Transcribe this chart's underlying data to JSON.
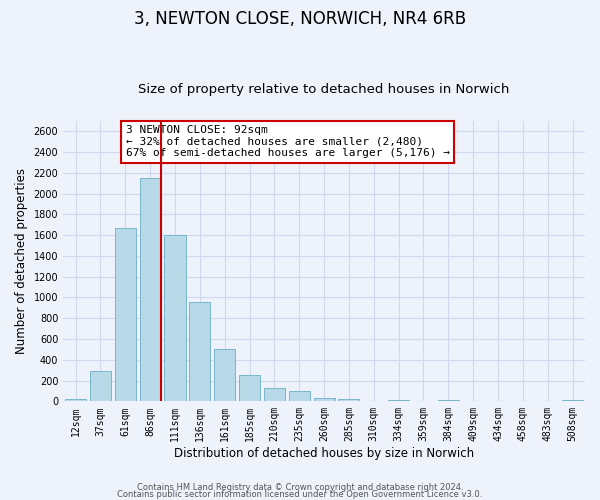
{
  "title": "3, NEWTON CLOSE, NORWICH, NR4 6RB",
  "subtitle": "Size of property relative to detached houses in Norwich",
  "xlabel": "Distribution of detached houses by size in Norwich",
  "ylabel": "Number of detached properties",
  "categories": [
    "12sqm",
    "37sqm",
    "61sqm",
    "86sqm",
    "111sqm",
    "136sqm",
    "161sqm",
    "185sqm",
    "210sqm",
    "235sqm",
    "260sqm",
    "285sqm",
    "310sqm",
    "334sqm",
    "359sqm",
    "384sqm",
    "409sqm",
    "434sqm",
    "458sqm",
    "483sqm",
    "508sqm"
  ],
  "values": [
    20,
    295,
    1670,
    2150,
    1600,
    960,
    505,
    255,
    125,
    100,
    35,
    20,
    0,
    10,
    0,
    10,
    0,
    0,
    0,
    0,
    15
  ],
  "bar_color": "#b8d9e8",
  "bar_edge_color": "#7ab5cc",
  "vline_color": "#cc0000",
  "annotation_text": "3 NEWTON CLOSE: 92sqm\n← 32% of detached houses are smaller (2,480)\n67% of semi-detached houses are larger (5,176) →",
  "annotation_box_color": "white",
  "annotation_box_edge": "#cc0000",
  "ylim": [
    0,
    2700
  ],
  "yticks": [
    0,
    200,
    400,
    600,
    800,
    1000,
    1200,
    1400,
    1600,
    1800,
    2000,
    2200,
    2400,
    2600
  ],
  "background_color": "#eef2fb",
  "grid_color": "#d0d8ee",
  "footer1": "Contains HM Land Registry data © Crown copyright and database right 2024.",
  "footer2": "Contains public sector information licensed under the Open Government Licence v3.0.",
  "title_fontsize": 12,
  "subtitle_fontsize": 9.5,
  "axis_label_fontsize": 8.5,
  "tick_fontsize": 7,
  "annotation_fontsize": 8,
  "footer_fontsize": 6
}
